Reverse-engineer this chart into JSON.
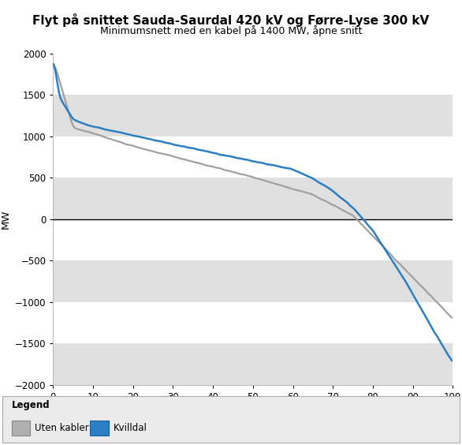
{
  "title": "Flyt på snittet Sauda-Saurdal 420 kV og Førre-Lyse 300 kV",
  "subtitle": "Minimumsnett med en kabel på 1400 MW, åpne snitt",
  "ylabel": "MW",
  "xlim": [
    0,
    100
  ],
  "ylim": [
    -2000,
    2000
  ],
  "yticks": [
    -2000,
    -1500,
    -1000,
    -500,
    0,
    500,
    1000,
    1500,
    2000
  ],
  "xticks": [
    0,
    10,
    20,
    30,
    40,
    50,
    60,
    70,
    80,
    90,
    100
  ],
  "gray_color": "#a0a0a0",
  "blue_color": "#2b7fc4",
  "bg_color": "#ffffff",
  "band_color": "#e0e0e0",
  "legend_bg": "#ebebeb",
  "legend_labels": [
    "Uten kabler",
    "Kvilldal"
  ],
  "title_fontsize": 11,
  "subtitle_fontsize": 9
}
